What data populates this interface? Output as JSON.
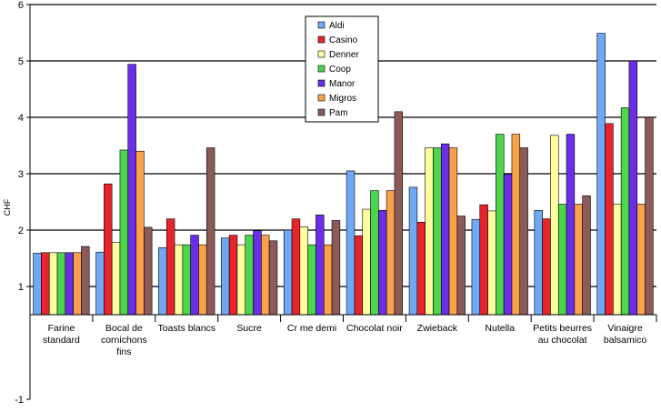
{
  "chart_data": {
    "type": "bar",
    "ylabel": "CHF",
    "ylim": [
      -1,
      6
    ],
    "yticks": [
      "-1",
      "1",
      "2",
      "3",
      "4",
      "5",
      "6"
    ],
    "gridlines": true,
    "legend_position": "top-center",
    "categories": [
      [
        "Farine",
        "standard"
      ],
      [
        "Bocal de",
        "cornichons",
        "fins"
      ],
      [
        "Toasts blancs"
      ],
      [
        "Sucre"
      ],
      [
        "Cr  me demi"
      ],
      [
        "Chocolat noir"
      ],
      [
        "Zwieback"
      ],
      [
        "Nutella"
      ],
      [
        "Petits beurres",
        "au chocolat"
      ],
      [
        "Vinaigre",
        "balsamico"
      ]
    ],
    "series": [
      {
        "name": "Aldi",
        "color": "#6fa8f5",
        "values": [
          1.59,
          1.61,
          1.69,
          1.86,
          2.0,
          3.05,
          2.76,
          2.19,
          2.35,
          5.49
        ]
      },
      {
        "name": "Casino",
        "color": "#e8242b",
        "values": [
          1.6,
          2.82,
          2.2,
          1.91,
          2.2,
          1.9,
          2.14,
          2.45,
          2.2,
          3.89
        ]
      },
      {
        "name": "Denner",
        "color": "#ffffa0",
        "values": [
          1.6,
          1.78,
          1.74,
          1.74,
          2.06,
          2.37,
          3.46,
          2.34,
          3.68,
          2.46
        ]
      },
      {
        "name": "Coop",
        "color": "#4cd64c",
        "values": [
          1.6,
          3.42,
          1.74,
          1.91,
          1.74,
          2.7,
          3.46,
          3.7,
          2.46,
          4.17
        ]
      },
      {
        "name": "Manor",
        "color": "#6a2ee8",
        "values": [
          1.6,
          4.94,
          1.91,
          1.99,
          2.27,
          2.35,
          3.53,
          2.99,
          3.7,
          5.0
        ]
      },
      {
        "name": "Migros",
        "color": "#f9a24b",
        "values": [
          1.6,
          3.4,
          1.74,
          1.91,
          1.74,
          2.7,
          3.46,
          3.7,
          2.46,
          2.46
        ]
      },
      {
        "name": "Pam",
        "color": "#8c5b59",
        "values": [
          1.71,
          2.05,
          3.46,
          1.81,
          2.17,
          4.1,
          2.25,
          3.46,
          2.61,
          4.0
        ]
      }
    ]
  }
}
